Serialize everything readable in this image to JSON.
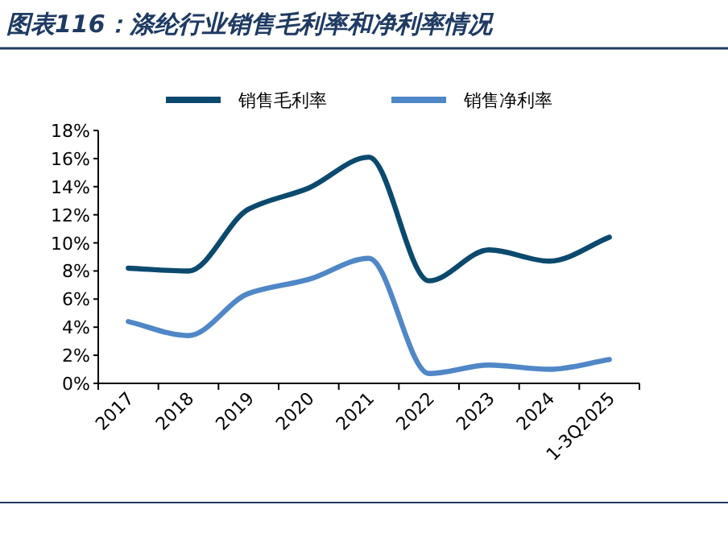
{
  "chart_data": {
    "type": "line",
    "title": "图表116：涤纶行业销售毛利率和净利率情况",
    "categories": [
      "2017",
      "2018",
      "2019",
      "2020",
      "2021",
      "2022",
      "2023",
      "2024",
      "1-3Q2025"
    ],
    "series": [
      {
        "name": "销售毛利率",
        "color": "#0b4a6e",
        "values": [
          8.2,
          8.0,
          12.4,
          13.9,
          16.1,
          7.3,
          9.5,
          8.7,
          10.4
        ]
      },
      {
        "name": "销售净利率",
        "color": "#4f87c7",
        "values": [
          4.4,
          3.4,
          6.4,
          7.4,
          8.9,
          0.7,
          1.3,
          1.0,
          1.7
        ]
      }
    ],
    "ylim": [
      0,
      18
    ],
    "yticks": [
      {
        "value": 0,
        "label": "0%"
      },
      {
        "value": 2,
        "label": "2%"
      },
      {
        "value": 4,
        "label": "4%"
      },
      {
        "value": 6,
        "label": "6%"
      },
      {
        "value": 8,
        "label": "8%"
      },
      {
        "value": 10,
        "label": "10%"
      },
      {
        "value": 12,
        "label": "12%"
      },
      {
        "value": 14,
        "label": "14%"
      },
      {
        "value": 16,
        "label": "16%"
      },
      {
        "value": 18,
        "label": "18%"
      }
    ],
    "grid": false,
    "legend": "top",
    "marker": "none",
    "line_style": "solid"
  }
}
